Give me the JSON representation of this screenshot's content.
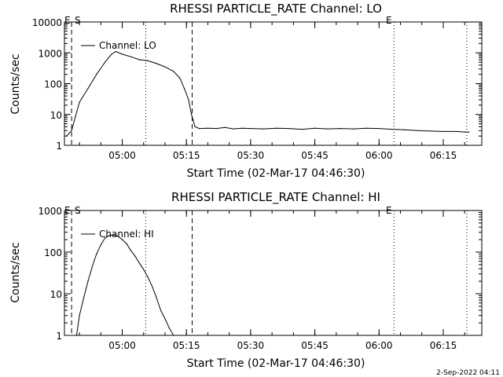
{
  "chart_data": [
    {
      "type": "line",
      "title": "RHESSI PARTICLE_RATE Channel: LO",
      "xlabel": "Start Time (02-Mar-17 04:46:30)",
      "ylabel": "Counts/sec",
      "y_scale": "log",
      "ylim": [
        1,
        10000
      ],
      "xlim": [
        "04:46:30",
        "06:24:00"
      ],
      "x_ticks": [
        "05:00",
        "05:15",
        "05:30",
        "05:45",
        "06:00",
        "06:15"
      ],
      "y_ticks": [
        "1",
        "10",
        "100",
        "1000",
        "10000"
      ],
      "grid": false,
      "legend_position": "top-left",
      "series": [
        {
          "name": "Channel: LO",
          "x": [
            "04:47:00",
            "04:47:40",
            "04:48:10",
            "04:49:00",
            "04:50:00",
            "04:52:00",
            "04:54:00",
            "04:56:00",
            "04:57:30",
            "04:58:30",
            "05:00:00",
            "05:02:00",
            "05:04:00",
            "05:06:00",
            "05:08:00",
            "05:10:00",
            "05:12:00",
            "05:13:30",
            "05:14:30",
            "05:15:30",
            "05:16:10",
            "05:17:00",
            "05:18:00",
            "05:20:00",
            "05:22:00",
            "05:24:00",
            "05:26:00",
            "05:28:00",
            "05:30:00",
            "05:33:00",
            "05:36:00",
            "05:39:00",
            "05:42:00",
            "05:45:00",
            "05:48:00",
            "05:51:00",
            "05:54:00",
            "05:57:00",
            "06:00:00",
            "06:03:00",
            "06:06:00",
            "06:09:00",
            "06:12:00",
            "06:15:00",
            "06:18:00",
            "06:20:00",
            "06:21:00"
          ],
          "y": [
            2,
            2.5,
            3,
            8,
            25,
            70,
            200,
            500,
            900,
            1100,
            900,
            750,
            600,
            550,
            450,
            350,
            250,
            150,
            70,
            30,
            10,
            4,
            3.5,
            3.6,
            3.5,
            3.8,
            3.4,
            3.6,
            3.5,
            3.4,
            3.6,
            3.5,
            3.3,
            3.6,
            3.4,
            3.5,
            3.4,
            3.6,
            3.5,
            3.3,
            3.2,
            3.0,
            2.9,
            2.8,
            2.8,
            2.7,
            2.7
          ]
        }
      ],
      "annotations": [
        "E",
        "S",
        "E"
      ],
      "markers": {
        "dashed_lines": [
          "04:48:10",
          "05:16:20"
        ],
        "dotted_lines": [
          "05:05:30",
          "06:03:30",
          "06:20:30"
        ]
      }
    },
    {
      "type": "line",
      "title": "RHESSI PARTICLE_RATE Channel: HI",
      "xlabel": "Start Time (02-Mar-17 04:46:30)",
      "ylabel": "Counts/sec",
      "y_scale": "log",
      "ylim": [
        1,
        1000
      ],
      "xlim": [
        "04:46:30",
        "06:24:00"
      ],
      "x_ticks": [
        "05:00",
        "05:15",
        "05:30",
        "05:45",
        "06:00",
        "06:15"
      ],
      "y_ticks": [
        "1",
        "10",
        "100",
        "1000"
      ],
      "grid": false,
      "legend_position": "top-left",
      "series": [
        {
          "name": "Channel: HI",
          "x": [
            "04:49:20",
            "04:50:00",
            "04:51:00",
            "04:52:00",
            "04:53:00",
            "04:54:00",
            "04:55:00",
            "04:56:00",
            "04:57:00",
            "04:58:00",
            "04:59:00",
            "05:00:00",
            "05:01:00",
            "05:02:00",
            "05:03:00",
            "05:04:00",
            "05:05:00",
            "05:06:00",
            "05:07:00",
            "05:08:00",
            "05:09:00",
            "05:10:00",
            "05:11:00",
            "05:12:00"
          ],
          "y": [
            1,
            3,
            8,
            20,
            45,
            90,
            150,
            220,
            250,
            260,
            240,
            200,
            160,
            110,
            80,
            55,
            38,
            25,
            15,
            8,
            4,
            2.5,
            1.5,
            1
          ]
        }
      ],
      "annotations": [
        "E",
        "S",
        "E"
      ],
      "markers": {
        "dashed_lines": [
          "04:48:10",
          "05:16:20"
        ],
        "dotted_lines": [
          "05:05:30",
          "06:03:30",
          "06:20:30"
        ]
      }
    }
  ],
  "footer": {
    "date_stamp": "2-Sep-2022 04:11"
  }
}
